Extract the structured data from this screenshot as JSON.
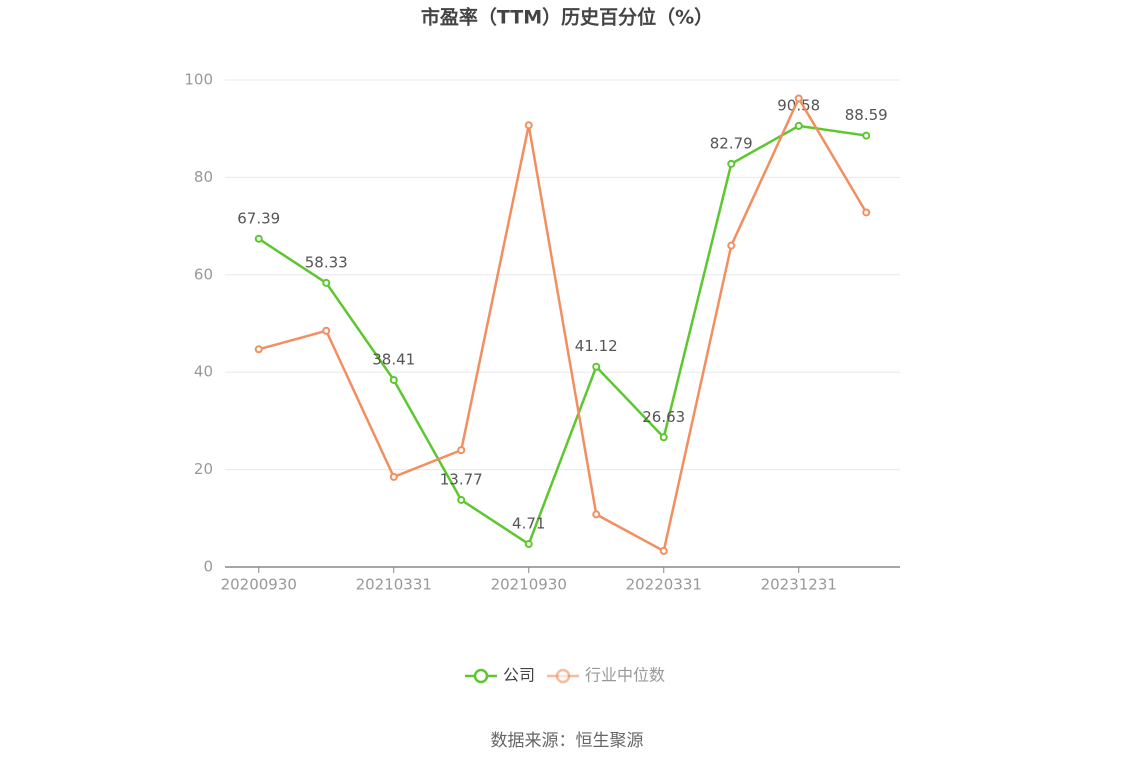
{
  "chart_data": {
    "type": "line",
    "title": "市盈率（TTM）历史百分位（%）",
    "categories": [
      "20200930",
      null,
      "20210331",
      null,
      "20210930",
      null,
      "20220331",
      null,
      "20231231",
      null
    ],
    "series": [
      {
        "name": "公司",
        "color": "#5cc72e",
        "data_labels": true,
        "values": [
          67.39,
          58.33,
          38.41,
          13.77,
          4.71,
          41.12,
          26.63,
          82.79,
          90.58,
          88.59
        ]
      },
      {
        "name": "行业中位数",
        "color": "#f28e5f",
        "data_labels": false,
        "values": [
          44.7,
          48.5,
          18.5,
          24,
          90.7,
          10.8,
          3.3,
          66,
          96.2,
          72.8
        ]
      }
    ],
    "ylim": [
      0,
      100
    ],
    "yticks": [
      0,
      20,
      40,
      60,
      80,
      100
    ],
    "grid": true,
    "source": "数据来源：恒生聚源"
  }
}
